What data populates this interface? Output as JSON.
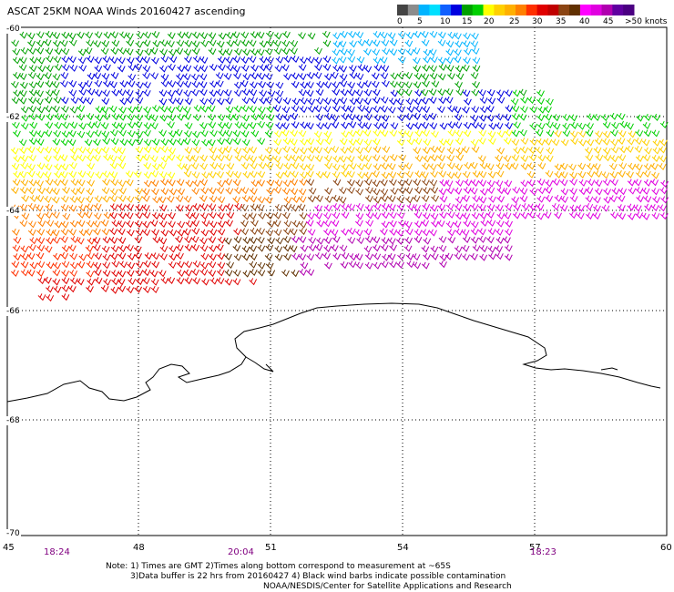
{
  "title": "ASCAT 25KM NOAA Winds 20160427 ascending",
  "legend": {
    "colors": [
      "#444444",
      "#8c8c8c",
      "#00b4ff",
      "#00e0ff",
      "#1060ff",
      "#0000e0",
      "#00a000",
      "#00d000",
      "#ffff00",
      "#ffd000",
      "#ffb000",
      "#ff8000",
      "#ff3000",
      "#e00000",
      "#c00000",
      "#8b4513",
      "#603000",
      "#ff00ff",
      "#e000e0",
      "#b000b0",
      "#6000a0",
      "#4b0082"
    ],
    "labels": [
      "0",
      "5",
      "10",
      "15",
      "20",
      "25",
      "30",
      "35",
      "40",
      "45",
      ">50 knots"
    ]
  },
  "lat_labels": [
    "-60",
    "-62",
    "-64",
    "-66",
    "-68",
    "-70"
  ],
  "lon_labels": [
    "45",
    "48",
    "51",
    "54",
    "57",
    "60"
  ],
  "times": [
    "18:24",
    "20:04",
    "18:23"
  ],
  "notes": {
    "line1": "Note: 1) Times are GMT 2)Times along bottom correspond to measurement at ~65S",
    "line2": "3)Data buffer is 22 hrs from 20160427 4) Black wind barbs indicate possible contamination",
    "line3": "NOAA/NESDIS/Center for Satellite Applications and Research"
  },
  "map_data": {
    "lon_range": [
      45,
      60
    ],
    "lat_range": [
      -70,
      -60
    ],
    "grid": true,
    "contains": "wind barbs over ocean, Antarctic coastline"
  }
}
